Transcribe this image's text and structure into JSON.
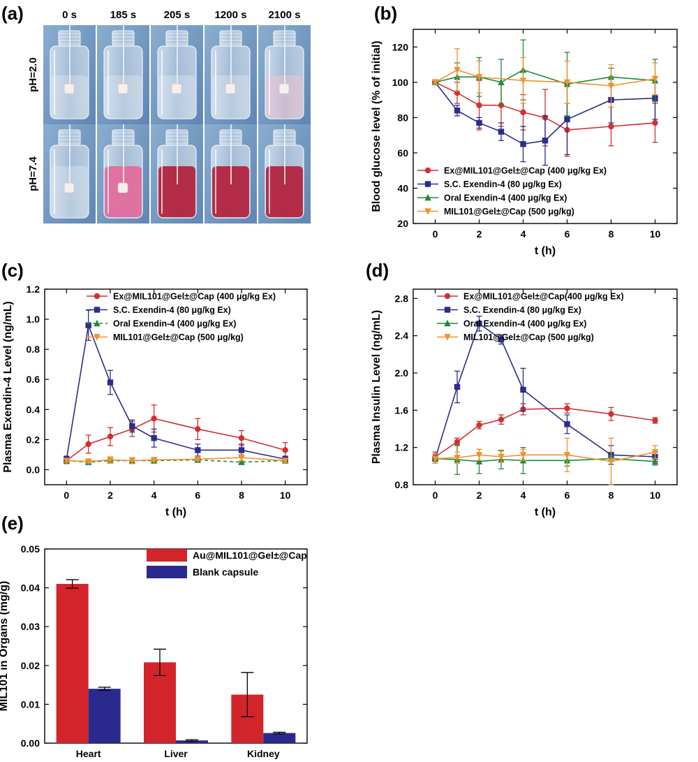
{
  "colors": {
    "red": "#d1312f",
    "blue": "#2b2d8c",
    "green": "#1f8a3a",
    "orange": "#f0922e",
    "bar_red": "#d3242a",
    "bar_blue": "#2a2a8e",
    "liquid_pink": "#e36a9a",
    "liquid_red": "#b31f3c"
  },
  "panel_a": {
    "label": "(a)",
    "times": [
      "0 s",
      "185 s",
      "205 s",
      "1200 s",
      "2100 s"
    ],
    "rows": [
      {
        "label": "pH=2.0",
        "liquid": [
          "clear",
          "clear",
          "clear",
          "clear",
          "faint"
        ]
      },
      {
        "label": "pH=7.4",
        "liquid": [
          "clear",
          "pink",
          "red",
          "red",
          "red"
        ]
      }
    ]
  },
  "chart_data": [
    {
      "id": "b",
      "label": "(b)",
      "type": "line",
      "xlabel": "t (h)",
      "ylabel": "Blood glucose level (% of initial)",
      "xlim": [
        -1,
        11
      ],
      "ylim": [
        20,
        130
      ],
      "xticks": [
        0,
        2,
        4,
        6,
        8,
        10
      ],
      "yticks": [
        20,
        40,
        60,
        80,
        100,
        120
      ],
      "legend_position": "bottom-left",
      "series": [
        {
          "name": "Ex@MIL101@Gel±@Cap (400 μg/kg Ex)",
          "color": "#d1312f",
          "marker": "circle",
          "dash": false,
          "x": [
            0,
            1,
            2,
            3,
            4,
            5,
            6,
            8,
            10
          ],
          "y": [
            100,
            94,
            87,
            87,
            83,
            80,
            73,
            75,
            77
          ],
          "err": [
            1,
            6,
            14,
            12,
            10,
            16,
            15,
            11,
            11
          ]
        },
        {
          "name": "S.C. Exendin-4 (80 μg/kg Ex)",
          "color": "#2b2d8c",
          "marker": "square",
          "dash": false,
          "x": [
            0,
            1,
            2,
            3,
            4,
            5,
            6,
            8,
            10
          ],
          "y": [
            100,
            84,
            77,
            72,
            65,
            67,
            79,
            90,
            91
          ],
          "err": [
            1,
            3,
            3,
            5,
            10,
            14,
            20,
            13,
            12
          ]
        },
        {
          "name": "Oral Exendin-4 (400 μg/kg Ex)",
          "color": "#1f8a3a",
          "marker": "triangle",
          "dash": false,
          "x": [
            0,
            1,
            2,
            3,
            4,
            6,
            8,
            10
          ],
          "y": [
            100,
            103,
            103,
            100,
            107,
            99,
            103,
            101
          ],
          "err": [
            1,
            8,
            11,
            13,
            17,
            18,
            5,
            12
          ]
        },
        {
          "name": "MIL101@Gel±@Cap (500 μg/kg)",
          "color": "#f0922e",
          "marker": "triangle-down",
          "dash": false,
          "x": [
            0,
            1,
            2,
            4,
            6,
            8,
            10
          ],
          "y": [
            100,
            107,
            103,
            101,
            100,
            98,
            102
          ],
          "err": [
            1,
            12,
            9,
            13,
            12,
            12,
            9
          ]
        }
      ]
    },
    {
      "id": "c",
      "label": "(c)",
      "type": "line",
      "xlabel": "t (h)",
      "ylabel": "Plasma Exendin-4 Level (ng/mL)",
      "xlim": [
        -1,
        11
      ],
      "ylim": [
        -0.1,
        1.2
      ],
      "xticks": [
        0,
        2,
        4,
        6,
        8,
        10
      ],
      "yticks": [
        0.0,
        0.2,
        0.4,
        0.6,
        0.8,
        1.0,
        1.2
      ],
      "tick_decimals": 1,
      "legend_position": "top-right",
      "series": [
        {
          "name": "Ex@MIL101@Gel±@Cap (400 μg/kg Ex)",
          "color": "#d1312f",
          "marker": "circle",
          "dash": false,
          "x": [
            0,
            1,
            2,
            3,
            4,
            6,
            8,
            10
          ],
          "y": [
            0.06,
            0.17,
            0.22,
            0.27,
            0.34,
            0.27,
            0.21,
            0.13
          ],
          "err": [
            0.02,
            0.06,
            0.06,
            0.05,
            0.09,
            0.07,
            0.05,
            0.05
          ]
        },
        {
          "name": "S.C. Exendin-4 (80 μg/kg Ex)",
          "color": "#2b2d8c",
          "marker": "square",
          "dash": false,
          "x": [
            0,
            1,
            2,
            3,
            4,
            6,
            8,
            10
          ],
          "y": [
            0.07,
            0.96,
            0.58,
            0.29,
            0.21,
            0.13,
            0.13,
            0.07
          ],
          "err": [
            0.02,
            0.1,
            0.08,
            0.04,
            0.06,
            0.04,
            0.04,
            0.02
          ]
        },
        {
          "name": "Oral Exendin-4 (400 μg/kg Ex)",
          "color": "#1f8a3a",
          "marker": "triangle",
          "dash": true,
          "x": [
            0,
            1,
            2,
            3,
            4,
            6,
            8,
            10
          ],
          "y": [
            0.06,
            0.05,
            0.06,
            0.06,
            0.06,
            0.065,
            0.05,
            0.06
          ],
          "err": [
            0.01,
            0.01,
            0.01,
            0.02,
            0.01,
            0.01,
            0.01,
            0.01
          ]
        },
        {
          "name": "MIL101@Gel±@Cap (500 μg/kg)",
          "color": "#f0922e",
          "marker": "triangle-down",
          "dash": false,
          "x": [
            0,
            1,
            2,
            3,
            4,
            6,
            8,
            10
          ],
          "y": [
            0.06,
            0.055,
            0.065,
            0.06,
            0.065,
            0.07,
            0.08,
            0.06
          ],
          "err": [
            0.01,
            0.01,
            0.02,
            0.02,
            0.01,
            0.01,
            0.02,
            0.01
          ]
        }
      ]
    },
    {
      "id": "d",
      "label": "(d)",
      "type": "line",
      "xlabel": "t (h)",
      "ylabel": "Plasma Insulin Level (ng/mL)",
      "xlim": [
        -1,
        11
      ],
      "ylim": [
        0.8,
        2.9
      ],
      "xticks": [
        0,
        2,
        4,
        6,
        8,
        10
      ],
      "yticks": [
        0.8,
        1.2,
        1.6,
        2.0,
        2.4,
        2.8
      ],
      "tick_decimals": 1,
      "legend_position": "top-right",
      "series": [
        {
          "name": "Ex@MIL101@Gel±@Cap(400 μg/kg Ex)",
          "color": "#d1312f",
          "marker": "circle",
          "dash": false,
          "x": [
            0,
            1,
            2,
            3,
            4,
            6,
            8,
            10
          ],
          "y": [
            1.1,
            1.26,
            1.44,
            1.5,
            1.61,
            1.62,
            1.56,
            1.49
          ],
          "err": [
            0.05,
            0.04,
            0.04,
            0.05,
            0.06,
            0.05,
            0.07,
            0.03
          ]
        },
        {
          "name": "S.C. Exendin-4 (80 μg/kg Ex)",
          "color": "#2b2d8c",
          "marker": "square",
          "dash": false,
          "x": [
            0,
            1,
            2,
            3,
            4,
            6,
            8,
            10
          ],
          "y": [
            1.08,
            1.85,
            2.53,
            2.36,
            1.82,
            1.45,
            1.12,
            1.1
          ],
          "err": [
            0.05,
            0.17,
            0.08,
            0.05,
            0.23,
            0.1,
            0.1,
            0.05
          ]
        },
        {
          "name": "Oral Exendin-4 (400 μg/kg Ex)",
          "color": "#1f8a3a",
          "marker": "triangle",
          "dash": false,
          "x": [
            0,
            1,
            2,
            3,
            4,
            6,
            8,
            10
          ],
          "y": [
            1.08,
            1.07,
            1.05,
            1.07,
            1.06,
            1.06,
            1.08,
            1.05
          ],
          "err": [
            0.05,
            0.16,
            0.13,
            0.1,
            0.14,
            0.06,
            0.03,
            0.04
          ]
        },
        {
          "name": "MIL101@Gel±@Cap (500 μg/kg)",
          "color": "#f0922e",
          "marker": "triangle-down",
          "dash": false,
          "x": [
            0,
            1,
            2,
            3,
            4,
            6,
            8,
            10
          ],
          "y": [
            1.08,
            1.09,
            1.12,
            1.1,
            1.12,
            1.12,
            1.05,
            1.15
          ],
          "err": [
            0.05,
            0.06,
            0.06,
            0.06,
            0.06,
            0.18,
            0.25,
            0.07
          ]
        }
      ]
    },
    {
      "id": "e",
      "label": "(e)",
      "type": "bar",
      "xlabel": "",
      "ylabel": "MIL101 in Organs (mg/g)",
      "categories": [
        "Heart",
        "Liver",
        "Kidney"
      ],
      "ylim": [
        0,
        0.05
      ],
      "yticks": [
        0.0,
        0.01,
        0.02,
        0.03,
        0.04,
        0.05
      ],
      "tick_decimals": 2,
      "legend_position": "top-center",
      "series": [
        {
          "name": "Au@MIL101@Gel±@Cap",
          "color": "#d3242a",
          "values": [
            0.041,
            0.0208,
            0.0125
          ],
          "err": [
            0.0011,
            0.0034,
            0.0057
          ]
        },
        {
          "name": "Blank capsule",
          "color": "#2a2a8e",
          "values": [
            0.014,
            0.0007,
            0.0026
          ],
          "err": [
            0.0004,
            0.0002,
            0.0002
          ]
        }
      ]
    }
  ]
}
